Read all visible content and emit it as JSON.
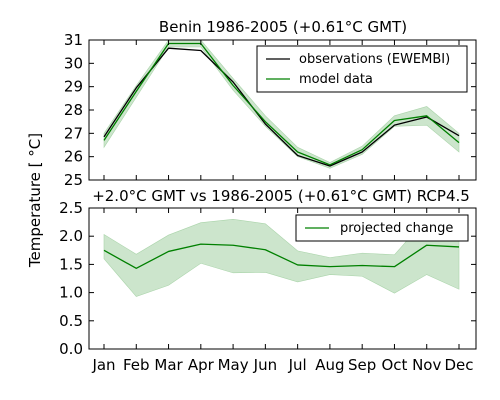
{
  "chart_data": [
    {
      "type": "line",
      "title": "Benin  1986-2005 (+0.61°C GMT)",
      "categories": [
        "Jan",
        "Feb",
        "Mar",
        "Apr",
        "May",
        "Jun",
        "Jul",
        "Aug",
        "Sep",
        "Oct",
        "Nov",
        "Dec"
      ],
      "ylim": [
        25,
        31
      ],
      "yticks": [
        "25",
        "26",
        "27",
        "28",
        "29",
        "30",
        "31"
      ],
      "legend_position": "top-right",
      "series": [
        {
          "name": "observations (EWEMBI)",
          "color": "#000000",
          "values": [
            26.85,
            28.95,
            30.65,
            30.55,
            29.2,
            27.4,
            26.05,
            25.6,
            26.2,
            27.35,
            27.7,
            26.9
          ]
        },
        {
          "name": "model data",
          "color": "#008000",
          "values": [
            26.7,
            28.8,
            30.85,
            30.85,
            29.05,
            27.5,
            26.2,
            25.65,
            26.3,
            27.55,
            27.75,
            26.6
          ],
          "band_lower": [
            26.4,
            28.55,
            30.7,
            30.7,
            28.85,
            27.3,
            26.0,
            25.5,
            26.1,
            27.3,
            27.35,
            26.2
          ],
          "band_upper": [
            27.0,
            29.05,
            31.0,
            31.0,
            29.35,
            27.75,
            26.4,
            25.75,
            26.45,
            27.75,
            28.15,
            27.0
          ],
          "band_color": "#aad4aa"
        }
      ]
    },
    {
      "type": "line",
      "title": "+2.0°C GMT vs 1986-2005 (+0.61°C GMT) RCP4.5",
      "categories": [
        "Jan",
        "Feb",
        "Mar",
        "Apr",
        "May",
        "Jun",
        "Jul",
        "Aug",
        "Sep",
        "Oct",
        "Nov",
        "Dec"
      ],
      "ylim": [
        0,
        2.5
      ],
      "yticks": [
        "0.0",
        "0.5",
        "1.0",
        "1.5",
        "2.0",
        "2.5"
      ],
      "legend_position": "top-right",
      "series": [
        {
          "name": "projected change",
          "color": "#008000",
          "values": [
            1.75,
            1.43,
            1.73,
            1.86,
            1.84,
            1.76,
            1.49,
            1.46,
            1.48,
            1.46,
            1.84,
            1.81
          ],
          "band_lower": [
            1.6,
            0.93,
            1.13,
            1.52,
            1.35,
            1.36,
            1.19,
            1.32,
            1.29,
            0.99,
            1.32,
            1.06
          ],
          "band_upper": [
            2.03,
            1.68,
            2.02,
            2.24,
            2.3,
            2.22,
            1.74,
            1.62,
            1.7,
            1.67,
            2.32,
            2.32
          ],
          "band_color": "#aad4aa"
        }
      ]
    }
  ],
  "shared_ylabel": "Temperature [ °C]"
}
